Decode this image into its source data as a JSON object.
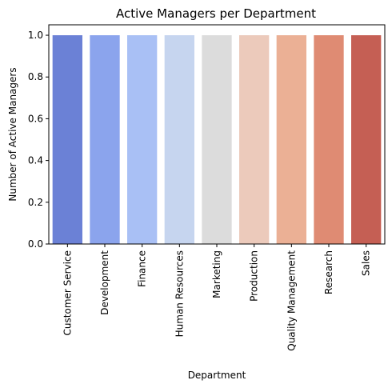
{
  "chart_data": {
    "type": "bar",
    "title": "Active Managers per Department",
    "xlabel": "Department",
    "ylabel": "Number of Active Managers",
    "categories": [
      "Customer Service",
      "Development",
      "Finance",
      "Human Resources",
      "Marketing",
      "Production",
      "Quality Management",
      "Research",
      "Sales"
    ],
    "values": [
      1,
      1,
      1,
      1,
      1,
      1,
      1,
      1,
      1
    ],
    "colors": [
      "#6b81d6",
      "#8ba4ed",
      "#a9c0f5",
      "#c6d5ef",
      "#dcdcdc",
      "#eccabb",
      "#ebb095",
      "#df8b73",
      "#c55f54"
    ],
    "ylim": [
      0,
      1.05
    ],
    "yticks": [
      "0.0",
      "0.2",
      "0.4",
      "0.6",
      "0.8",
      "1.0"
    ],
    "grid": false,
    "legend": "none"
  }
}
